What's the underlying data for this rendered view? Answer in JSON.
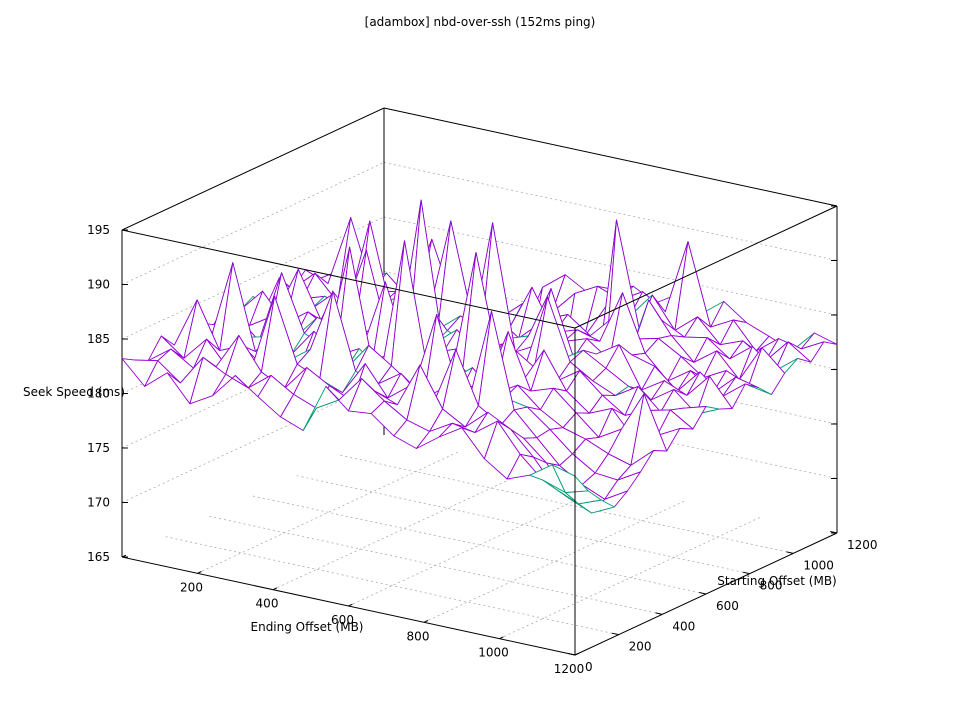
{
  "chart_data": {
    "type": "surface",
    "title": "[adambox] nbd-over-ssh (152ms ping)",
    "xlabel": "Ending Offset (MB)",
    "ylabel": "Starting Offset (MB)",
    "zlabel": "Seek Speed (ms)",
    "xlim": [
      0,
      1200
    ],
    "ylim": [
      0,
      1200
    ],
    "zlim": [
      165,
      195
    ],
    "x_ticks": [
      0,
      200,
      400,
      600,
      800,
      1000,
      1200
    ],
    "y_ticks": [
      0,
      200,
      400,
      600,
      800,
      1000,
      1200
    ],
    "z_ticks": [
      165,
      170,
      175,
      180,
      185,
      190,
      195
    ],
    "x_tick_labels": [
      "0",
      "200",
      "400",
      "600",
      "800",
      "1000",
      "1200"
    ],
    "y_tick_labels": [
      "0",
      "200",
      "400",
      "600",
      "800",
      "1000",
      "1200"
    ],
    "z_tick_labels": [
      "165",
      "170",
      "175",
      "180",
      "185",
      "190",
      "195"
    ],
    "grid": true,
    "colors": {
      "top": "#9400d3",
      "bottom": "#009e73",
      "axes": "#000000",
      "grid": "#a0a0a0"
    },
    "x": [
      0,
      60,
      120,
      180,
      240,
      300,
      360,
      420,
      480,
      540,
      600,
      660,
      720,
      780,
      840,
      900,
      960,
      1020,
      1080,
      1140,
      1200
    ],
    "y": [
      0,
      60,
      120,
      180,
      240,
      300,
      360,
      420,
      480,
      540,
      600,
      660,
      720,
      780,
      840,
      900,
      960,
      1020,
      1080,
      1140,
      1200
    ],
    "z": [
      [
        183.2,
        181.1,
        182.8,
        180.4,
        181.6,
        183.9,
        182.4,
        181.0,
        180.2,
        184.7,
        182.9,
        183.1,
        181.5,
        180.8,
        182.3,
        183.6,
        181.2,
        179.8,
        180.6,
        182.0,
        181.4
      ],
      [
        182.5,
        182.9,
        181.3,
        184.1,
        183.0,
        182.2,
        183.8,
        182.5,
        181.7,
        182.9,
        185.3,
        183.7,
        182.4,
        181.8,
        183.0,
        182.6,
        184.1,
        181.5,
        179.6,
        178.9,
        179.5
      ],
      [
        181.9,
        183.4,
        182.1,
        182.7,
        186.0,
        183.1,
        182.0,
        184.4,
        183.2,
        182.2,
        183.6,
        182.8,
        186.9,
        183.3,
        182.1,
        183.9,
        182.8,
        180.7,
        178.2,
        177.3,
        178.1
      ],
      [
        183.6,
        182.0,
        184.2,
        181.8,
        182.5,
        189.5,
        183.7,
        182.8,
        182.0,
        185.1,
        182.4,
        184.0,
        182.7,
        188.2,
        183.5,
        182.2,
        181.4,
        179.6,
        176.8,
        175.9,
        176.9
      ],
      [
        182.2,
        186.8,
        182.6,
        183.5,
        181.9,
        183.0,
        184.5,
        190.3,
        183.4,
        182.7,
        184.1,
        182.2,
        183.8,
        182.9,
        191.6,
        183.0,
        180.9,
        178.8,
        177.5,
        176.6,
        177.8
      ],
      [
        181.7,
        182.5,
        190.1,
        182.4,
        183.8,
        182.1,
        183.3,
        182.6,
        185.2,
        183.8,
        182.3,
        189.4,
        182.6,
        184.2,
        183.1,
        182.7,
        181.1,
        179.3,
        178.0,
        177.8,
        179.0
      ],
      [
        183.1,
        181.9,
        182.7,
        183.2,
        182.0,
        184.6,
        182.8,
        183.9,
        182.4,
        194.7,
        183.5,
        182.8,
        184.4,
        182.5,
        183.7,
        181.9,
        180.7,
        180.1,
        179.2,
        178.6,
        180.4
      ],
      [
        182.4,
        183.7,
        181.8,
        188.5,
        183.4,
        182.5,
        192.2,
        182.1,
        183.6,
        182.9,
        184.2,
        183.3,
        182.0,
        187.6,
        182.6,
        183.3,
        181.5,
        179.7,
        180.9,
        184.6,
        179.8
      ],
      [
        184.0,
        182.2,
        183.5,
        182.0,
        184.3,
        183.7,
        182.4,
        188.9,
        182.8,
        183.5,
        182.6,
        193.4,
        183.9,
        182.3,
        185.8,
        182.5,
        180.9,
        181.8,
        179.4,
        180.2,
        181.3
      ],
      [
        182.6,
        184.8,
        182.3,
        183.8,
        182.6,
        182.0,
        183.9,
        182.7,
        196.3,
        182.9,
        183.7,
        182.4,
        184.6,
        183.2,
        182.4,
        183.8,
        182.0,
        180.6,
        181.5,
        182.0,
        180.7
      ],
      [
        183.3,
        182.1,
        186.7,
        182.5,
        183.5,
        189.8,
        182.2,
        183.4,
        182.6,
        184.3,
        182.5,
        183.9,
        182.2,
        189.1,
        183.6,
        182.3,
        181.4,
        182.7,
        180.8,
        181.6,
        182.2
      ],
      [
        181.8,
        183.6,
        182.5,
        184.4,
        182.2,
        183.3,
        182.8,
        185.6,
        183.2,
        182.4,
        194.0,
        182.6,
        183.7,
        182.8,
        184.1,
        182.9,
        181.7,
        180.9,
        182.3,
        180.5,
        181.4
      ],
      [
        183.9,
        182.4,
        183.1,
        182.2,
        190.9,
        182.6,
        183.9,
        182.3,
        184.0,
        183.1,
        182.8,
        183.5,
        188.3,
        182.4,
        183.2,
        184.5,
        180.8,
        182.1,
        181.2,
        183.4,
        180.9
      ],
      [
        182.3,
        184.2,
        182.0,
        183.6,
        182.8,
        184.1,
        182.5,
        191.7,
        182.7,
        183.8,
        182.3,
        184.2,
        182.9,
        183.6,
        182.1,
        183.0,
        182.4,
        180.6,
        182.8,
        181.0,
        182.6
      ],
      [
        183.5,
        182.7,
        189.2,
        182.9,
        183.3,
        182.4,
        183.6,
        182.9,
        183.5,
        182.2,
        186.4,
        182.7,
        183.4,
        182.8,
        187.7,
        182.6,
        180.5,
        181.9,
        180.3,
        182.2,
        181.7
      ],
      [
        182.1,
        183.4,
        182.6,
        184.0,
        182.1,
        188.0,
        182.3,
        184.2,
        182.1,
        183.9,
        182.9,
        183.8,
        182.3,
        184.4,
        182.9,
        183.4,
        182.2,
        180.7,
        181.8,
        180.9,
        180.5
      ],
      [
        178.4,
        176.2,
        179.0,
        175.1,
        177.3,
        172.8,
        178.2,
        176.5,
        179.4,
        177.6,
        175.8,
        178.9,
        176.7,
        179.6,
        185.9,
        183.1,
        181.1,
        182.6,
        180.4,
        183.8,
        181.9
      ],
      [
        177.2,
        175.0,
        171.5,
        173.6,
        176.0,
        174.4,
        177.8,
        172.3,
        175.7,
        173.9,
        176.8,
        174.6,
        191.8,
        182.3,
        183.5,
        182.4,
        182.8,
        181.3,
        182.9,
        181.1,
        182.7
      ],
      [
        176.1,
        173.4,
        175.3,
        168.6,
        173.9,
        176.5,
        174.1,
        177.3,
        173.5,
        176.2,
        179.6,
        183.0,
        182.4,
        184.8,
        182.0,
        183.7,
        181.6,
        182.4,
        181.0,
        183.2,
        181.8
      ],
      [
        175.3,
        174.8,
        172.6,
        174.3,
        171.9,
        175.2,
        173.1,
        175.9,
        180.4,
        182.6,
        183.7,
        182.9,
        184.1,
        182.7,
        189.6,
        182.2,
        183.3,
        180.9,
        182.5,
        182.0,
        183.1
      ],
      [
        174.8,
        173.1,
        174.0,
        172.4,
        175.1,
        172.9,
        176.3,
        181.7,
        183.3,
        182.1,
        182.9,
        183.6,
        182.5,
        183.8,
        182.4,
        184.0,
        182.5,
        181.7,
        180.8,
        182.9,
        182.3
      ]
    ]
  }
}
